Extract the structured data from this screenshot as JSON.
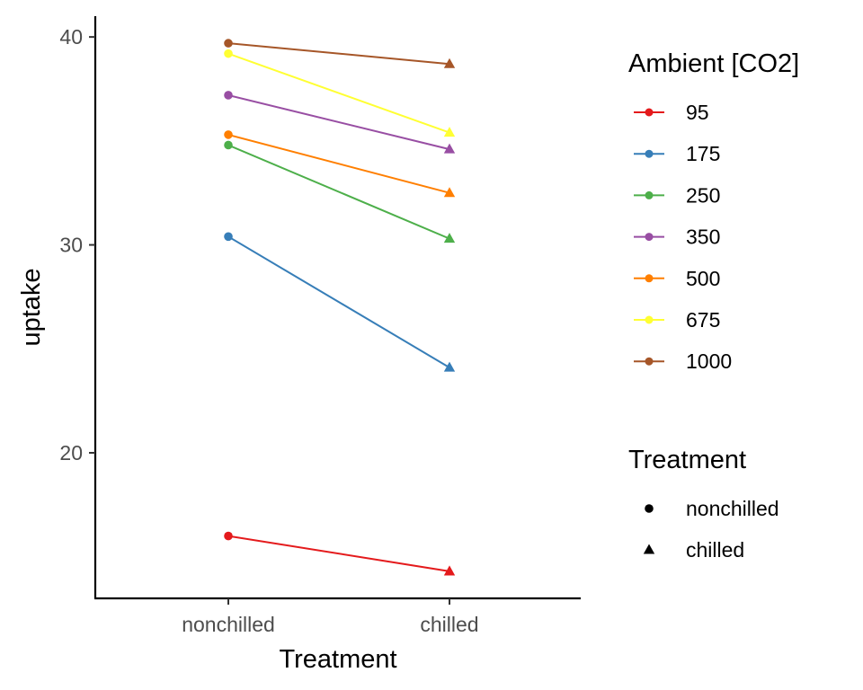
{
  "chart_data": {
    "type": "line",
    "title": "",
    "xlabel": "Treatment",
    "ylabel": "uptake",
    "categories": [
      "nonchilled",
      "chilled"
    ],
    "ylim": [
      13,
      41
    ],
    "yticks": [
      20,
      30,
      40
    ],
    "grid": false,
    "legend_position": "right",
    "legends": {
      "color": {
        "title": "Ambient [CO2]",
        "entries": [
          "95",
          "175",
          "250",
          "350",
          "500",
          "675",
          "1000"
        ]
      },
      "shape": {
        "title": "Treatment",
        "entries": [
          {
            "label": "nonchilled",
            "shape": "circle"
          },
          {
            "label": "chilled",
            "shape": "triangle"
          }
        ]
      }
    },
    "series": [
      {
        "name": "95",
        "color": "#E41A1C",
        "values": [
          16.0,
          14.3
        ]
      },
      {
        "name": "175",
        "color": "#377EB8",
        "values": [
          30.4,
          24.1
        ]
      },
      {
        "name": "250",
        "color": "#4DAF4A",
        "values": [
          34.8,
          30.3
        ]
      },
      {
        "name": "350",
        "color": "#984EA3",
        "values": [
          37.2,
          34.6
        ]
      },
      {
        "name": "500",
        "color": "#FF7F00",
        "values": [
          35.3,
          32.5
        ]
      },
      {
        "name": "675",
        "color": "#FFFF33",
        "values": [
          39.2,
          35.4
        ]
      },
      {
        "name": "1000",
        "color": "#A65628",
        "values": [
          39.7,
          38.7
        ]
      }
    ]
  }
}
